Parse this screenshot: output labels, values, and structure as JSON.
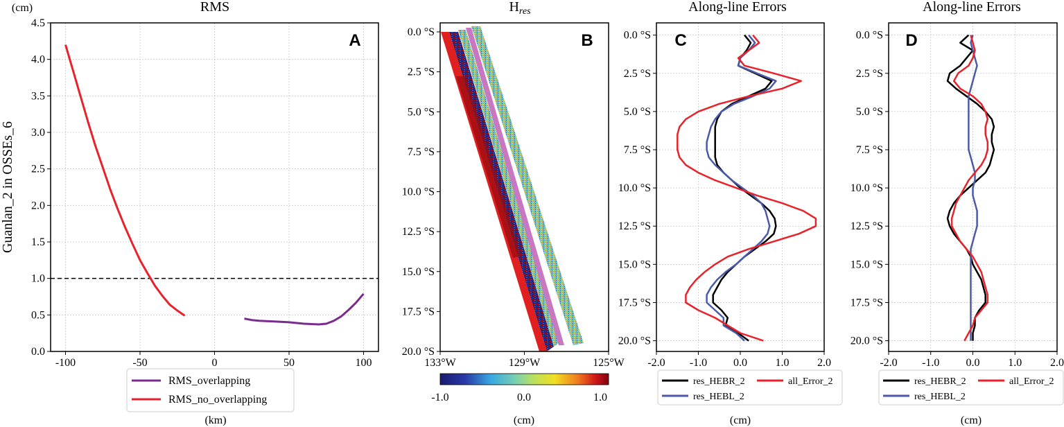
{
  "figure": {
    "ylabel_left": "Guanlan_2 in OSSEs_6",
    "unit_cm": "(cm)",
    "unit_km": "(km)"
  },
  "colors": {
    "red": "#e8222a",
    "purple": "#7a2c8e",
    "black": "#000000",
    "blue": "#4a5aa8",
    "pink": "#c878c0"
  },
  "chart_data": [
    {
      "id": "A",
      "type": "line",
      "title": "RMS",
      "panel_label": "A",
      "ylabel": "(cm)",
      "xlabel": "(km)",
      "xlim": [
        -110,
        110
      ],
      "ylim": [
        0,
        4.5
      ],
      "xticks": [
        -100,
        -50,
        0,
        50,
        100
      ],
      "yticks": [
        0.0,
        0.5,
        1.0,
        1.5,
        2.0,
        2.5,
        3.0,
        3.5,
        4.0,
        4.5
      ],
      "threshold": 1.0,
      "series": [
        {
          "name": "RMS_overlapping",
          "color": "#7a2c8e",
          "x": [
            20,
            25,
            30,
            40,
            50,
            60,
            70,
            75,
            80,
            85,
            90,
            95,
            100
          ],
          "y": [
            0.45,
            0.43,
            0.42,
            0.41,
            0.4,
            0.38,
            0.37,
            0.38,
            0.42,
            0.48,
            0.57,
            0.67,
            0.79
          ]
        },
        {
          "name": "RMS_no_overlapping",
          "color": "#e8222a",
          "x": [
            -100,
            -95,
            -90,
            -85,
            -80,
            -75,
            -70,
            -65,
            -60,
            -55,
            -50,
            -45,
            -40,
            -35,
            -30,
            -25,
            -20
          ],
          "y": [
            4.2,
            3.85,
            3.5,
            3.15,
            2.82,
            2.52,
            2.22,
            1.95,
            1.7,
            1.47,
            1.25,
            1.07,
            0.9,
            0.76,
            0.64,
            0.56,
            0.49
          ]
        }
      ]
    },
    {
      "id": "B",
      "type": "heatmap",
      "title": "H",
      "title_sub": "res",
      "panel_label": "B",
      "xlabel": "(cm)",
      "xlim": [
        -133,
        -125
      ],
      "ylim": [
        0,
        20
      ],
      "xticks": [
        "133°W",
        "129°W",
        "125°W"
      ],
      "yticks": [
        "0.0 °S",
        "2.5 °S",
        "5.0 °S",
        "7.5 °S",
        "10.0 °S",
        "12.5 °S",
        "15.0 °S",
        "17.5 °S",
        "20.0 °S"
      ],
      "colorbar": {
        "min": -1.0,
        "max": 1.0,
        "ticks": [
          "-1.0",
          "0.0",
          "1.0"
        ]
      }
    },
    {
      "id": "C",
      "type": "line",
      "title": "Along-line Errors",
      "panel_label": "C",
      "xlabel": "(cm)",
      "xlim": [
        -2,
        2
      ],
      "ylim": [
        20.7,
        -0.8
      ],
      "xticks": [
        "-2.0",
        "-1.0",
        "0.0",
        "1.0",
        "2.0"
      ],
      "yticks": [
        "0.0 °S",
        "2.5 °S",
        "5.0 °S",
        "7.5 °S",
        "10.0 °S",
        "12.5 °S",
        "15.0 °S",
        "17.5 °S",
        "20.0 °S"
      ],
      "y": [
        0,
        0.5,
        1,
        1.5,
        2,
        2.5,
        3,
        3.5,
        4,
        4.5,
        5,
        5.5,
        6,
        6.5,
        7,
        7.5,
        8,
        8.5,
        9,
        9.5,
        10,
        10.5,
        11,
        11.5,
        12,
        12.5,
        13,
        13.5,
        14,
        14.5,
        15,
        15.5,
        16,
        16.5,
        17,
        17.5,
        18,
        18.5,
        19,
        19.5,
        20
      ],
      "series": [
        {
          "name": "res_HEBR_2",
          "color": "#000000",
          "values": [
            0.1,
            0.25,
            0.15,
            0.0,
            -0.05,
            0.35,
            0.75,
            0.6,
            0.2,
            -0.2,
            -0.45,
            -0.55,
            -0.6,
            -0.6,
            -0.6,
            -0.6,
            -0.6,
            -0.55,
            -0.4,
            -0.2,
            0.0,
            0.25,
            0.5,
            0.7,
            0.82,
            0.85,
            0.8,
            0.6,
            0.35,
            0.1,
            -0.1,
            -0.3,
            -0.45,
            -0.55,
            -0.65,
            -0.65,
            -0.45,
            -0.3,
            -0.35,
            -0.05,
            0.2
          ]
        },
        {
          "name": "res_HEBL_2",
          "color": "#4a5aa8",
          "values": [
            0.2,
            0.35,
            0.2,
            0.0,
            -0.05,
            0.4,
            0.85,
            0.7,
            0.3,
            -0.15,
            -0.45,
            -0.6,
            -0.7,
            -0.75,
            -0.8,
            -0.8,
            -0.75,
            -0.6,
            -0.4,
            -0.2,
            0.05,
            0.3,
            0.5,
            0.6,
            0.65,
            0.7,
            0.65,
            0.5,
            0.3,
            0.1,
            -0.1,
            -0.35,
            -0.55,
            -0.7,
            -0.8,
            -0.8,
            -0.6,
            -0.4,
            -0.4,
            -0.1,
            0.1
          ]
        },
        {
          "name": "all_Error_2",
          "color": "#e8222a",
          "values": [
            0.3,
            0.45,
            0.2,
            -0.05,
            0.1,
            0.8,
            1.45,
            1.0,
            0.2,
            -0.5,
            -1.0,
            -1.3,
            -1.45,
            -1.5,
            -1.5,
            -1.5,
            -1.45,
            -1.3,
            -1.0,
            -0.6,
            -0.1,
            0.4,
            1.0,
            1.5,
            1.8,
            1.8,
            1.4,
            0.8,
            0.2,
            -0.3,
            -0.6,
            -0.85,
            -1.05,
            -1.2,
            -1.3,
            -1.3,
            -1.0,
            -0.6,
            -0.3,
            0.0,
            0.55
          ]
        }
      ]
    },
    {
      "id": "D",
      "type": "line",
      "title": "Along-line Errors",
      "panel_label": "D",
      "xlabel": "(cm)",
      "xlim": [
        -2,
        2
      ],
      "ylim": [
        20.7,
        -0.8
      ],
      "xticks": [
        "-2.0",
        "-1.0",
        "0.0",
        "1.0",
        "2.0"
      ],
      "yticks": [
        "0.0 °S",
        "2.5 °S",
        "5.0 °S",
        "7.5 °S",
        "10.0 °S",
        "12.5 °S",
        "15.0 °S",
        "17.5 °S",
        "20.0 °S"
      ],
      "y": [
        0,
        0.5,
        1,
        1.5,
        2,
        2.5,
        3,
        3.5,
        4,
        4.5,
        5,
        5.5,
        6,
        6.5,
        7,
        7.5,
        8,
        8.5,
        9,
        9.5,
        10,
        10.5,
        11,
        11.5,
        12,
        12.5,
        13,
        13.5,
        14,
        14.5,
        15,
        15.5,
        16,
        16.5,
        17,
        17.5,
        18,
        18.5,
        19,
        19.5,
        20
      ],
      "series": [
        {
          "name": "res_HEBR_2",
          "color": "#000000",
          "values": [
            -0.1,
            -0.3,
            0.0,
            -0.15,
            -0.3,
            -0.55,
            -0.6,
            -0.4,
            -0.15,
            0.1,
            0.3,
            0.45,
            0.5,
            0.45,
            0.45,
            0.5,
            0.45,
            0.4,
            0.3,
            0.1,
            -0.1,
            -0.3,
            -0.45,
            -0.55,
            -0.6,
            -0.55,
            -0.45,
            -0.3,
            -0.15,
            -0.05,
            0.0,
            0.1,
            0.2,
            0.25,
            0.3,
            0.3,
            0.15,
            0.05,
            0.05,
            0.0,
            0.0
          ]
        },
        {
          "name": "res_HEBL_2",
          "color": "#4a5aa8",
          "values": [
            0.0,
            -0.05,
            0.0,
            0.05,
            0.1,
            0.05,
            0.0,
            -0.05,
            -0.1,
            -0.1,
            -0.1,
            -0.1,
            -0.1,
            -0.1,
            -0.1,
            -0.1,
            -0.05,
            0.0,
            0.05,
            0.05,
            0.0,
            0.0,
            0.05,
            0.1,
            0.1,
            0.1,
            0.05,
            0.0,
            -0.05,
            -0.05,
            -0.05,
            -0.05,
            -0.05,
            -0.05,
            -0.05,
            -0.05,
            -0.05,
            -0.05,
            -0.05,
            -0.05,
            -0.05
          ]
        },
        {
          "name": "all_Error_2",
          "color": "#e8222a",
          "values": [
            -0.05,
            0.0,
            0.05,
            0.0,
            -0.1,
            -0.35,
            -0.45,
            -0.3,
            0.0,
            0.2,
            0.3,
            0.35,
            0.3,
            0.3,
            0.35,
            0.35,
            0.3,
            0.2,
            0.05,
            -0.1,
            -0.2,
            -0.3,
            -0.4,
            -0.45,
            -0.5,
            -0.5,
            -0.4,
            -0.3,
            -0.15,
            0.0,
            0.1,
            0.2,
            0.25,
            0.3,
            0.35,
            0.35,
            0.2,
            0.05,
            0.0,
            -0.1,
            -0.2
          ]
        }
      ]
    }
  ]
}
